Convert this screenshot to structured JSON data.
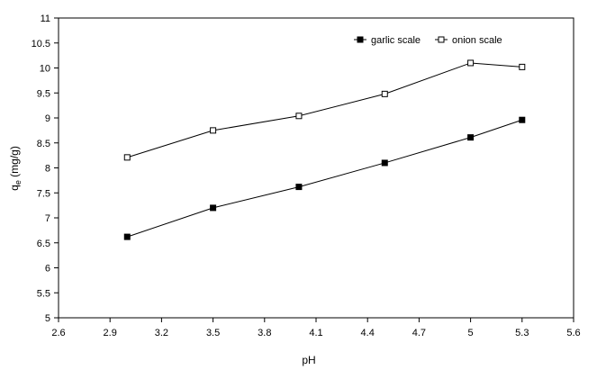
{
  "chart_data": {
    "type": "line",
    "title": "",
    "xlabel": "pH",
    "ylabel": "q",
    "ylabel_sub": "e",
    "ylabel_unit": " (mg/g)",
    "xlim": [
      2.6,
      5.6
    ],
    "ylim": [
      5,
      11
    ],
    "x_ticks": [
      "2.6",
      "2.9",
      "3.2",
      "3.5",
      "3.8",
      "4.1",
      "4.4",
      "4.7",
      "5",
      "5.3",
      "5.6"
    ],
    "y_ticks": [
      "5",
      "5.5",
      "6",
      "6.5",
      "7",
      "7.5",
      "8",
      "8.5",
      "9",
      "9.5",
      "10",
      "10.5",
      "11"
    ],
    "grid": false,
    "legend_position": "top-right",
    "series": [
      {
        "name": "garlic scale",
        "marker": "filled-square",
        "color": "#000000",
        "x": [
          3.0,
          3.5,
          4.0,
          4.5,
          5.0,
          5.3
        ],
        "y": [
          6.62,
          7.2,
          7.62,
          8.1,
          8.61,
          8.96
        ]
      },
      {
        "name": "onion scale",
        "marker": "open-square",
        "color": "#000000",
        "x": [
          3.0,
          3.5,
          4.0,
          4.5,
          5.0,
          5.3
        ],
        "y": [
          8.21,
          8.75,
          9.04,
          9.48,
          10.1,
          10.02
        ]
      }
    ]
  }
}
